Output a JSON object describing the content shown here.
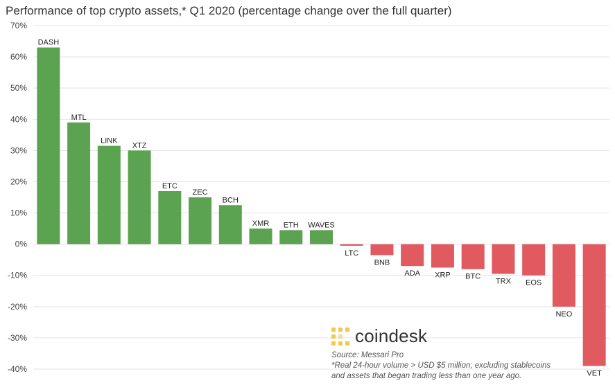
{
  "title": "Performance of top crypto assets,* Q1 2020 (percentage change over the full quarter)",
  "logo": {
    "text": "coindesk",
    "icon": "coindesk-logo-icon"
  },
  "source": "Source: Messari Pro",
  "footnote": [
    "*Real 24-hour volume > USD $5 million; excluding stablecoins",
    "and assets that began trading less than one year ago."
  ],
  "colors": {
    "positive": "#5ba350",
    "negative": "#e05a5f",
    "grid": "#e3e3e3",
    "axis_text": "#444444"
  },
  "chart_data": {
    "type": "bar",
    "title": "Performance of top crypto assets,* Q1 2020 (percentage change over the full quarter)",
    "xlabel": "",
    "ylabel": "",
    "ylim": [
      -40,
      70
    ],
    "yticks": [
      70,
      60,
      50,
      40,
      30,
      20,
      10,
      0,
      -10,
      -20,
      -30,
      -40
    ],
    "ytick_labels": [
      "70%",
      "60%",
      "50%",
      "40%",
      "30%",
      "20%",
      "10%",
      "0%",
      "-10%",
      "-20%",
      "-30%",
      "-40%"
    ],
    "grid": true,
    "legend": "none",
    "categories": [
      "DASH",
      "MTL",
      "LINK",
      "XTZ",
      "ETC",
      "ZEC",
      "BCH",
      "XMR",
      "ETH",
      "WAVES",
      "LTC",
      "BNB",
      "ADA",
      "XRP",
      "BTC",
      "TRX",
      "EOS",
      "NEO",
      "VET"
    ],
    "values": [
      63,
      39,
      31.5,
      30,
      17,
      15,
      12.5,
      5,
      4.5,
      4.5,
      -0.5,
      -3.5,
      -7,
      -7.5,
      -8,
      -9.5,
      -10,
      -20,
      -39
    ]
  }
}
